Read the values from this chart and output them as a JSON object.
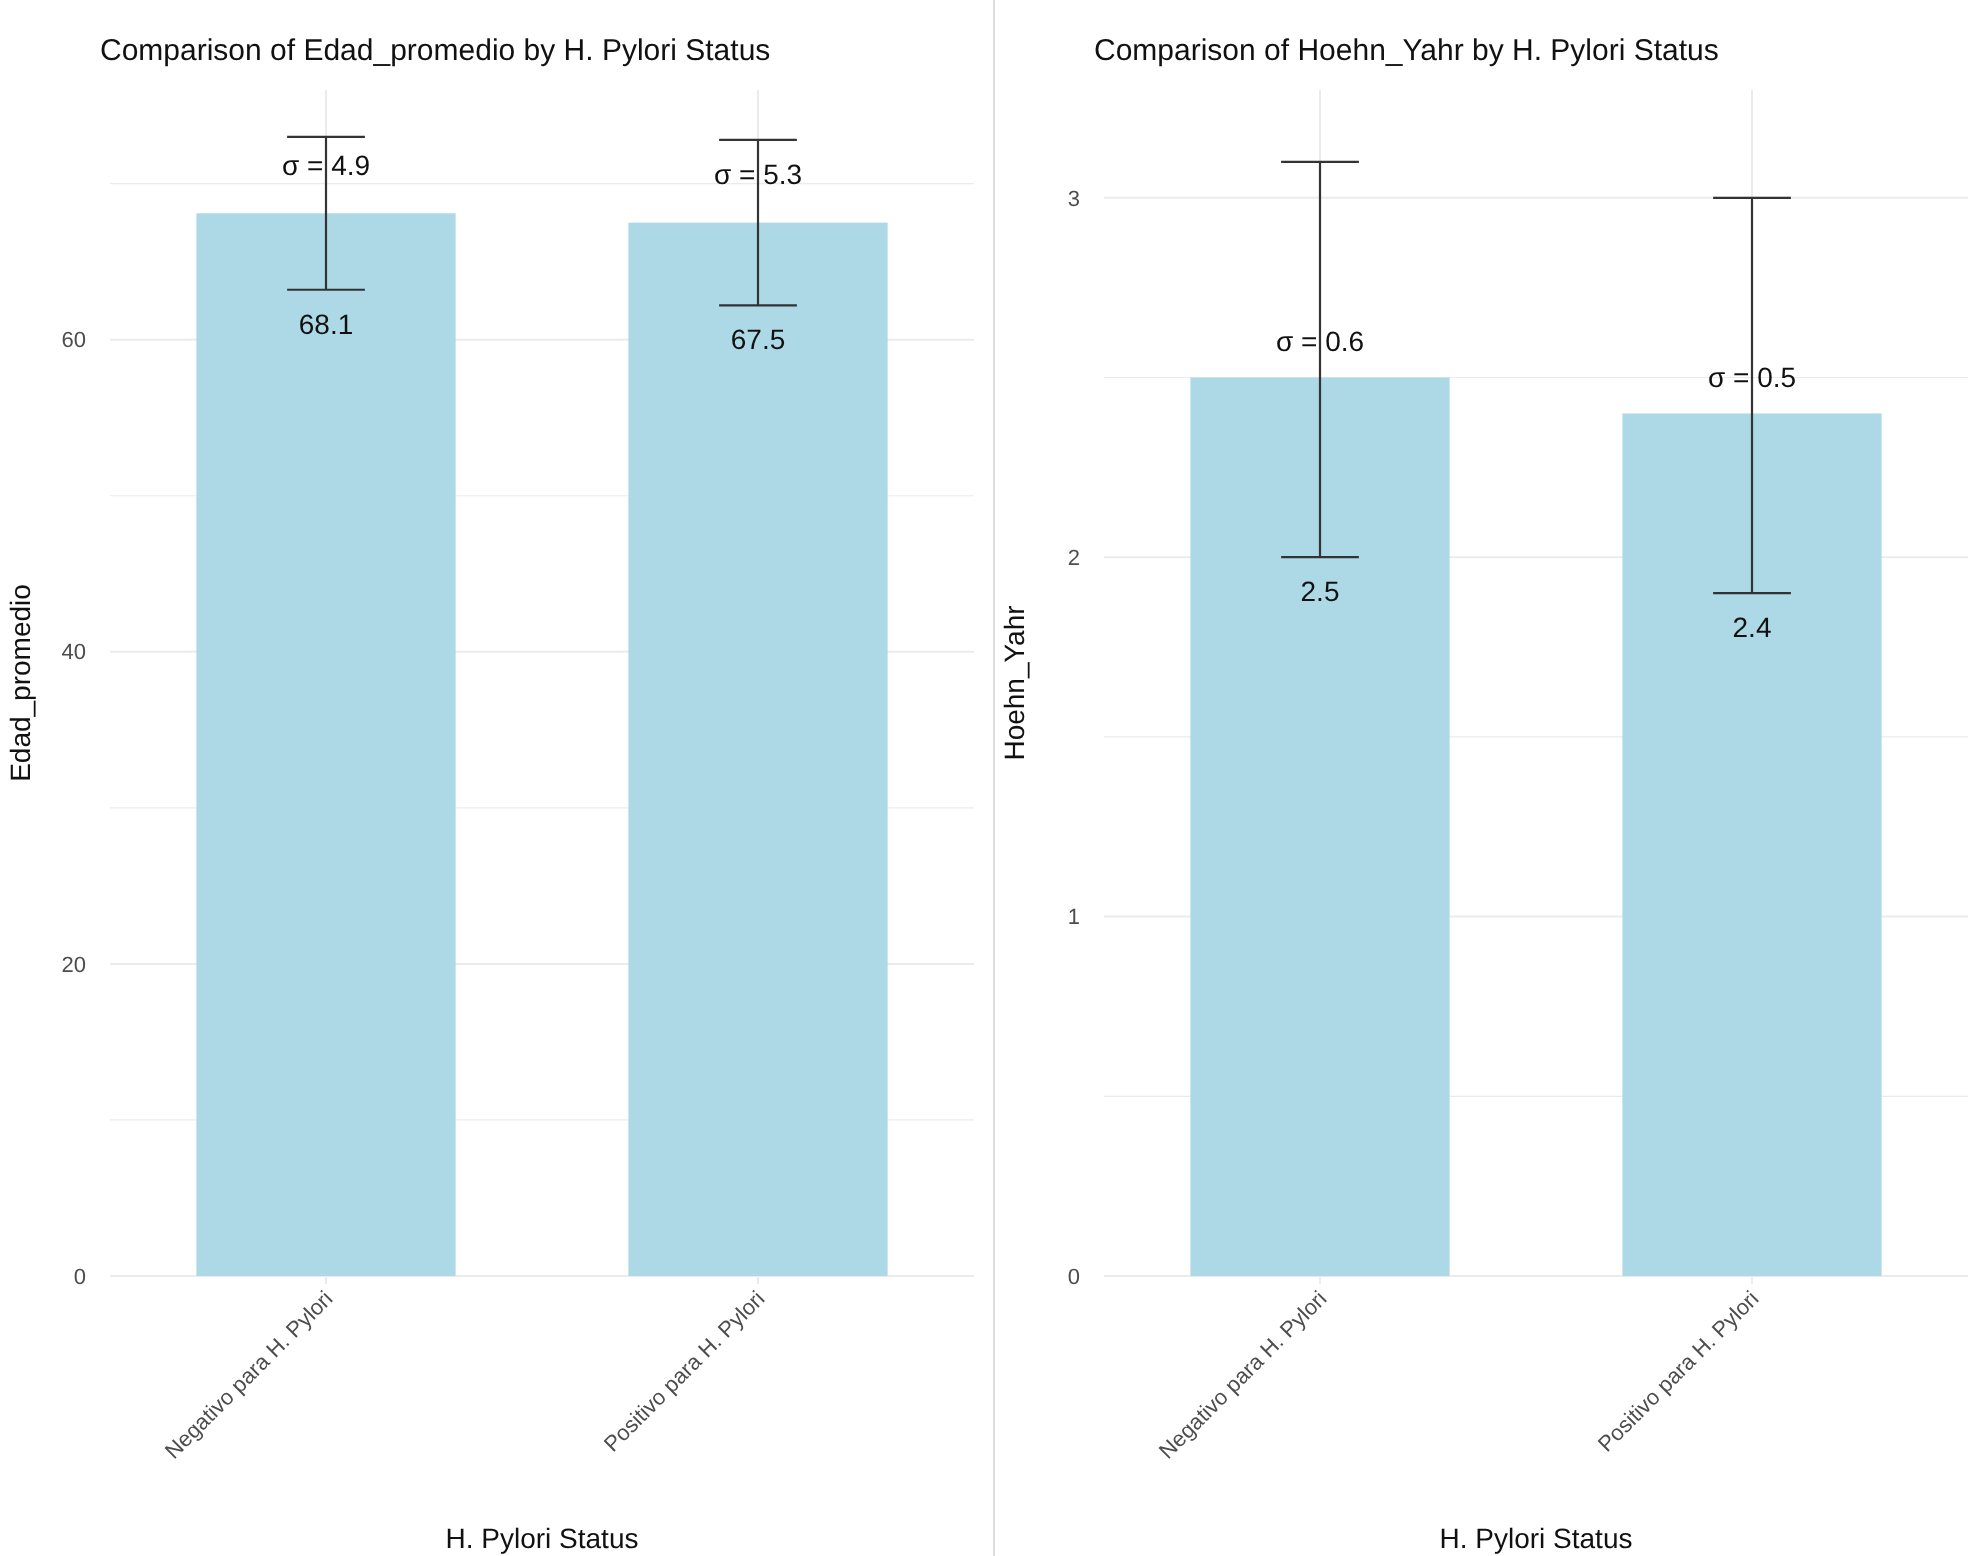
{
  "chart_data": [
    {
      "type": "bar",
      "title": "Comparison of Edad_promedio by H. Pylori Status",
      "xlabel": "H. Pylori Status",
      "ylabel": "Edad_promedio",
      "categories": [
        "Negativo para H. Pylori",
        "Positivo para H. Pylori"
      ],
      "values": [
        68.1,
        67.5
      ],
      "errors": [
        4.9,
        5.3
      ],
      "color": "#add8e6",
      "data_labels": true,
      "ylim": [
        0,
        76
      ],
      "yticks": [
        0,
        {
          "value": 10,
          "label": null
        },
        20,
        {
          "value": 30,
          "label": null
        },
        40,
        {
          "value": 50,
          "label": null
        },
        60,
        {
          "value": 70,
          "label": null
        }
      ],
      "grid": true,
      "annotations": [
        {
          "text": "σ = 4.9",
          "x": "Negativo para H. Pylori",
          "y": 71.2
        },
        {
          "text": "σ = 5.3",
          "x": "Positivo para H. Pylori",
          "y": 70.6
        }
      ]
    },
    {
      "type": "bar",
      "title": "Comparison of Hoehn_Yahr by H. Pylori Status",
      "xlabel": "H. Pylori Status",
      "ylabel": "Hoehn_Yahr",
      "categories": [
        "Negativo para H. Pylori",
        "Positivo para H. Pylori"
      ],
      "values": [
        2.5,
        2.4
      ],
      "errors": [
        [
          2.0,
          3.1
        ],
        [
          1.9,
          3.0
        ]
      ],
      "color": "#add8e6",
      "data_labels": true,
      "ylim": [
        0,
        3.3
      ],
      "yticks": [
        0,
        {
          "value": 0.5,
          "label": null
        },
        1,
        {
          "value": 1.5,
          "label": null
        },
        2,
        {
          "value": 2.5,
          "label": null
        },
        3
      ],
      "grid": true,
      "annotations": [
        {
          "text": "σ = 0.6",
          "x": "Negativo para H. Pylori",
          "y": 2.6
        },
        {
          "text": "σ = 0.5",
          "x": "Positivo para H. Pylori",
          "y": 2.5
        }
      ]
    }
  ]
}
